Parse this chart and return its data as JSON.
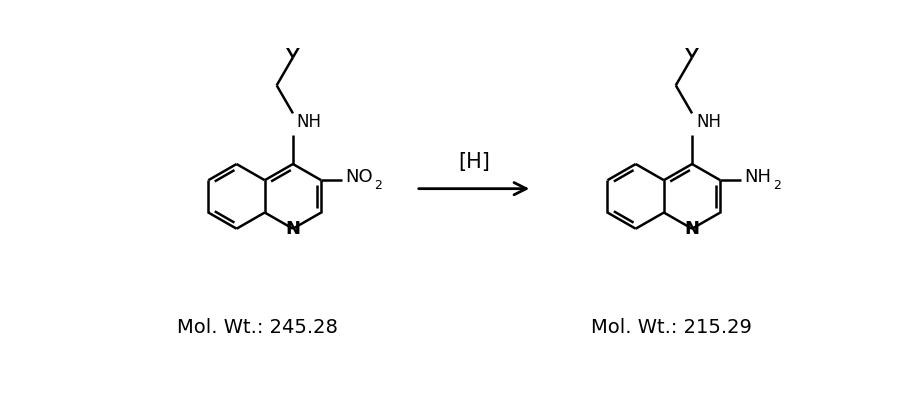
{
  "background_color": "#ffffff",
  "figure_width": 9.09,
  "figure_height": 3.98,
  "dpi": 100,
  "arrow_label": "[H]",
  "line_color": "#000000",
  "line_width": 1.8,
  "font_size_molwt": 14,
  "mol_wt_left": "Mol. Wt.: 245.28",
  "mol_wt_right": "Mol. Wt.: 215.29"
}
